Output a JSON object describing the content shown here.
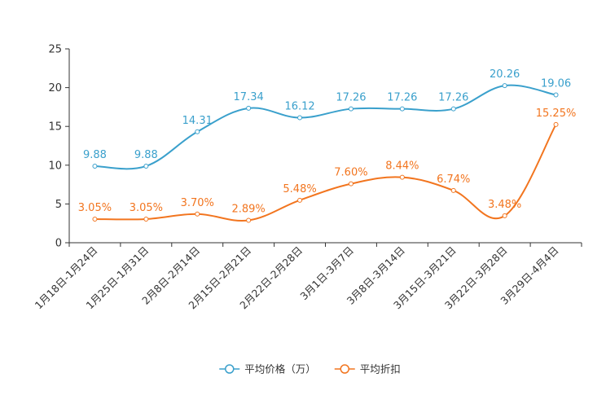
{
  "chart_data": {
    "type": "line",
    "categories": [
      "1月18日-1月24日",
      "1月25日-1月31日",
      "2月8日-2月14日",
      "2月15日-2月21日",
      "2月22日-2月28日",
      "3月1日-3月7日",
      "3月8日-3月14日",
      "3月15日-3月21日",
      "3月22日-3月28日",
      "3月29日-4月4日"
    ],
    "ylim": [
      0,
      25
    ],
    "yticks": [
      0,
      5,
      10,
      15,
      20,
      25
    ],
    "smooth": true,
    "series": [
      {
        "name": "平均价格（万）",
        "color": "#3aa0cc",
        "values": [
          9.88,
          9.88,
          14.31,
          17.34,
          16.12,
          17.26,
          17.26,
          17.26,
          20.26,
          19.06
        ],
        "labels": [
          "9.88",
          "9.88",
          "14.31",
          "17.34",
          "16.12",
          "17.26",
          "17.26",
          "17.26",
          "20.26",
          "19.06"
        ]
      },
      {
        "name": "平均折扣",
        "color": "#f2751f",
        "values": [
          3.05,
          3.05,
          3.7,
          2.89,
          5.48,
          7.6,
          8.44,
          6.74,
          3.48,
          15.25
        ],
        "labels": [
          "3.05%",
          "3.05%",
          "3.70%",
          "2.89%",
          "5.48%",
          "7.60%",
          "8.44%",
          "6.74%",
          "3.48%",
          "15.25%"
        ]
      }
    ],
    "legend_position": "bottom-center"
  }
}
